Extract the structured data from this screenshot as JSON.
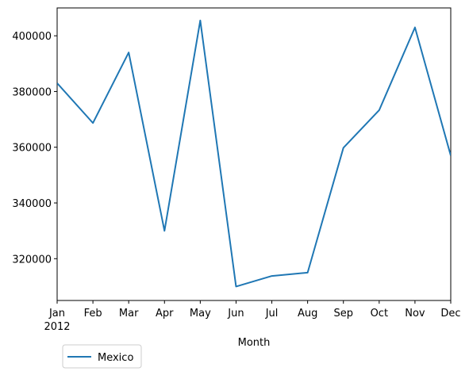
{
  "chart_data": {
    "type": "line",
    "x": [
      "Jan",
      "Feb",
      "Mar",
      "Apr",
      "May",
      "Jun",
      "Jul",
      "Aug",
      "Sep",
      "Oct",
      "Nov",
      "Dec"
    ],
    "x_year_label": "2012",
    "xlabel": "Month",
    "ylabel": "",
    "title": "",
    "ylim": [
      305000,
      410000
    ],
    "yticks": [
      "320000",
      "340000",
      "360000",
      "380000",
      "400000"
    ],
    "ytick_values": [
      320000,
      340000,
      360000,
      380000,
      400000
    ],
    "grid": false,
    "legend_position": "lower-left, below axes",
    "series": [
      {
        "name": "Mexico",
        "color": "#1f77b4",
        "values": [
          383000,
          368700,
          394000,
          330000,
          405500,
          310000,
          313800,
          315000,
          359800,
          373300,
          403000,
          357000
        ]
      }
    ]
  }
}
